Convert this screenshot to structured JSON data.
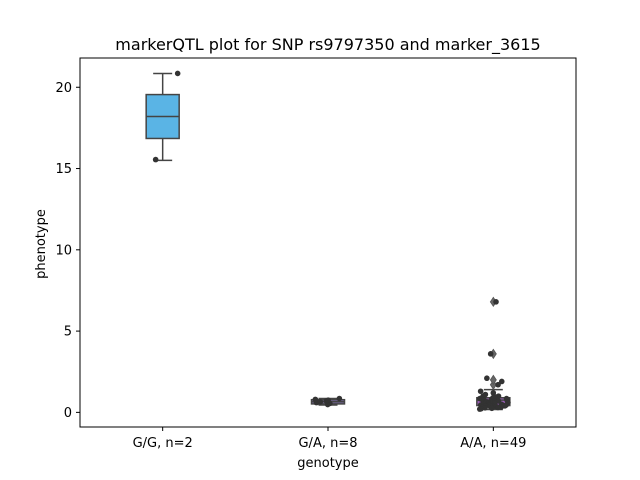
{
  "chart_data": {
    "type": "box",
    "title": "markerQTL plot for SNP rs9797350 and marker_3615",
    "xlabel": "genotype",
    "ylabel": "phenotype",
    "ylim": [
      -0.9,
      21.8
    ],
    "yticks": [
      0,
      5,
      10,
      15,
      20
    ],
    "categories": [
      "G/G, n=2",
      "G/A, n=8",
      "A/A, n=49"
    ],
    "boxes": [
      {
        "category": "G/G, n=2",
        "q1": 16.85,
        "median": 18.2,
        "q3": 19.55,
        "whisker_low": 15.5,
        "whisker_high": 20.85,
        "color": "#5ab4e5",
        "outliers": []
      },
      {
        "category": "G/A, n=8",
        "q1": 0.52,
        "median": 0.65,
        "q3": 0.78,
        "whisker_low": 0.45,
        "whisker_high": 0.85,
        "color": "#7d6ba8",
        "outliers": []
      },
      {
        "category": "A/A, n=49",
        "q1": 0.42,
        "median": 0.75,
        "q3": 0.9,
        "whisker_low": 0.18,
        "whisker_high": 1.4,
        "color": "#9a5fb8",
        "outliers": [
          1.7,
          2.0,
          3.6,
          6.8
        ]
      }
    ],
    "points": [
      {
        "category": "G/G, n=2",
        "values": [
          20.85,
          15.55
        ]
      },
      {
        "category": "G/A, n=8",
        "values": [
          0.48,
          0.55,
          0.6,
          0.65,
          0.7,
          0.75,
          0.8,
          0.85
        ]
      },
      {
        "category": "A/A, n=49",
        "values": [
          6.8,
          3.6,
          2.1,
          1.9,
          1.7,
          1.3,
          1.2,
          1.1,
          1.0,
          1.0,
          0.95,
          0.9,
          0.9,
          0.85,
          0.85,
          0.8,
          0.8,
          0.8,
          0.75,
          0.75,
          0.7,
          0.7,
          0.7,
          0.65,
          0.65,
          0.6,
          0.6,
          0.6,
          0.55,
          0.55,
          0.5,
          0.5,
          0.5,
          0.45,
          0.45,
          0.45,
          0.4,
          0.4,
          0.4,
          0.38,
          0.35,
          0.35,
          0.32,
          0.3,
          0.3,
          0.28,
          0.25,
          0.22,
          0.2
        ]
      }
    ],
    "point_color": "#333333",
    "grid": false
  }
}
